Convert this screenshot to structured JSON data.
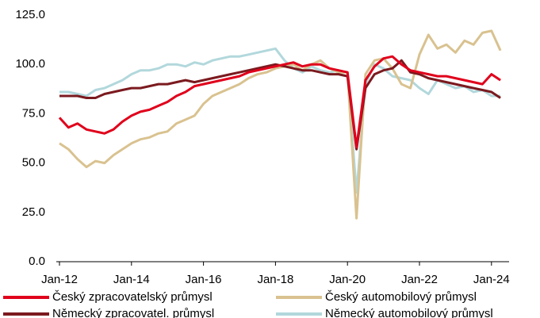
{
  "chart_data": {
    "type": "line",
    "categories": [
      "Jan-12",
      null,
      null,
      null,
      null,
      null,
      null,
      null,
      "Jan-14",
      null,
      null,
      null,
      null,
      null,
      null,
      null,
      "Jan-16",
      null,
      null,
      null,
      null,
      null,
      null,
      null,
      "Jan-18",
      null,
      null,
      null,
      null,
      null,
      null,
      null,
      "Jan-20",
      null,
      null,
      null,
      null,
      null,
      null,
      null,
      "Jan-22",
      null,
      null,
      null,
      null,
      null,
      null,
      null,
      "Jan-24",
      null
    ],
    "series": [
      {
        "name": "Český zpracovatelský průmysl",
        "color": "#e0001b",
        "values": [
          73,
          68,
          70,
          67,
          66,
          65,
          67,
          71,
          74,
          76,
          77,
          79,
          81,
          84,
          86,
          89,
          90,
          91,
          92,
          93,
          94,
          96,
          97,
          98,
          99,
          100,
          101,
          99,
          100,
          100,
          98,
          97,
          96,
          58,
          92,
          99,
          103,
          104,
          100,
          97,
          96,
          95,
          94,
          94,
          93,
          92,
          91,
          90,
          95,
          92
        ]
      },
      {
        "name": "Český automobilový průmysl",
        "color": "#d9c290",
        "values": [
          60,
          57,
          52,
          48,
          51,
          50,
          54,
          57,
          60,
          62,
          63,
          65,
          66,
          70,
          72,
          74,
          80,
          84,
          86,
          88,
          90,
          93,
          95,
          96,
          98,
          99,
          100,
          97,
          100,
          102,
          98,
          96,
          96,
          22,
          95,
          102,
          103,
          98,
          90,
          88,
          105,
          115,
          108,
          110,
          106,
          112,
          110,
          116,
          117,
          107
        ]
      },
      {
        "name": "Německý zpracovatel. průmysl",
        "color": "#7b1a1f",
        "values": [
          84,
          84,
          84,
          83,
          83,
          85,
          86,
          87,
          88,
          88,
          89,
          90,
          90,
          91,
          92,
          91,
          92,
          93,
          94,
          95,
          96,
          97,
          98,
          99,
          100,
          99,
          98,
          97,
          97,
          96,
          95,
          95,
          94,
          57,
          88,
          95,
          97,
          98,
          102,
          96,
          95,
          93,
          92,
          91,
          90,
          89,
          88,
          87,
          86,
          83
        ]
      },
      {
        "name": "Německý automobilový průmysl",
        "color": "#b2d8dc",
        "values": [
          86,
          86,
          85,
          84,
          87,
          88,
          90,
          92,
          95,
          97,
          97,
          98,
          100,
          100,
          99,
          101,
          100,
          102,
          103,
          104,
          104,
          105,
          106,
          107,
          108,
          102,
          98,
          96,
          99,
          97,
          96,
          97,
          96,
          35,
          90,
          100,
          98,
          94,
          93,
          92,
          88,
          85,
          92,
          90,
          88,
          89,
          86,
          87,
          84,
          84
        ]
      }
    ],
    "ylim": [
      0,
      125
    ],
    "yticks": [
      {
        "value": 0,
        "label": "0.0"
      },
      {
        "value": 25,
        "label": "25.0"
      },
      {
        "value": 50,
        "label": "50.0"
      },
      {
        "value": 75,
        "label": "75.0"
      },
      {
        "value": 100,
        "label": "100.0"
      },
      {
        "value": 125,
        "label": "125.0"
      }
    ],
    "legend": "bottom"
  }
}
